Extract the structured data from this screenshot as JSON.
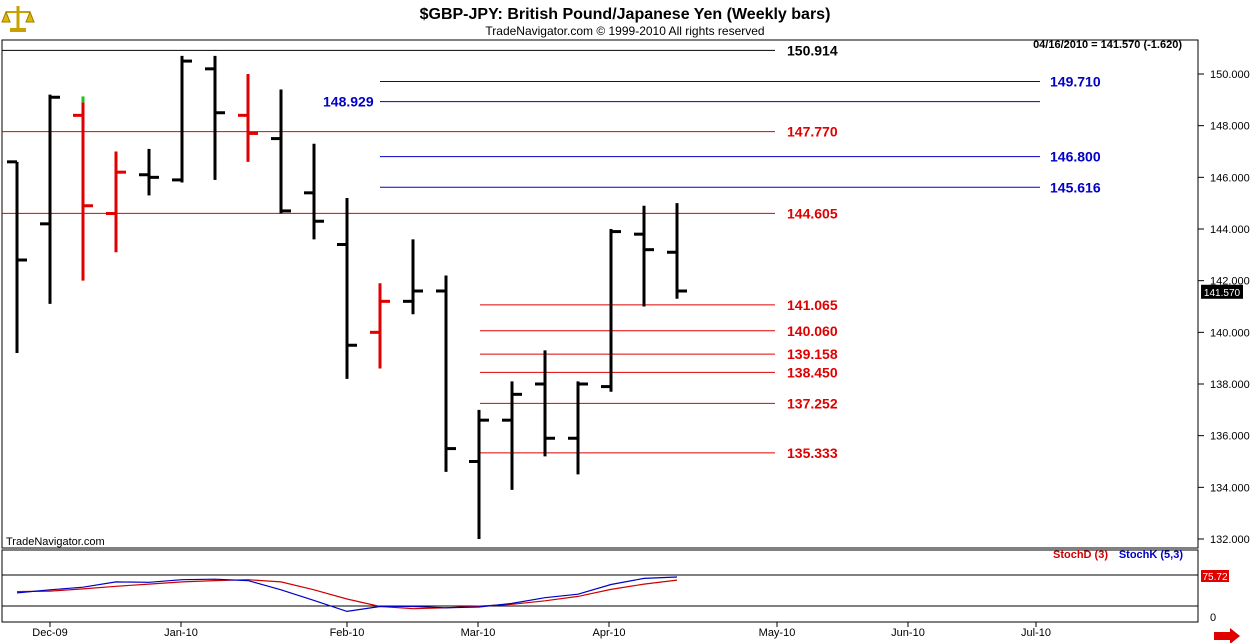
{
  "header": {
    "title": "$GBP-JPY:  British Pound/Japanese Yen  (Weekly bars)",
    "subtitle": "TradeNavigator.com © 1999-2010 All rights reserved",
    "last_quote": "04/16/2010 = 141.570 (-1.620)",
    "watermark": "TradeNavigator.com",
    "logo_icon": "scales-icon",
    "scroll_icon": "arrow-right-icon"
  },
  "colors": {
    "up_bar": "#000000",
    "down_bar": "#e00000",
    "red_level": "#e00000",
    "blue_level": "#0000c8",
    "stoch_d": "#d00000",
    "stoch_k": "#0000c8"
  },
  "chart_data": [
    {
      "type": "ohlc",
      "title": "$GBP-JPY:  British Pound/Japanese Yen  (Weekly bars)",
      "ylim": [
        131.5,
        151.4
      ],
      "y_ticks": [
        132,
        134,
        136,
        138,
        140,
        142,
        144,
        146,
        148,
        150
      ],
      "y_tick_labels": [
        "132.000",
        "134.000",
        "136.000",
        "138.000",
        "140.000",
        "142.000",
        "144.000",
        "146.000",
        "148.000",
        "150.000"
      ],
      "x_ticks": [
        "Dec-09",
        "Jan-10",
        "Feb-10",
        "Mar-10",
        "Apr-10",
        "May-10",
        "Jun-10",
        "Jul-10"
      ],
      "last_price_label": "141.570",
      "bars": [
        {
          "week": 1,
          "open": 146.6,
          "high": 146.6,
          "low": 139.2,
          "close": 142.8,
          "color": "black"
        },
        {
          "week": 2,
          "open": 144.2,
          "high": 149.2,
          "low": 141.1,
          "close": 149.1,
          "color": "black"
        },
        {
          "week": 3,
          "open": 148.4,
          "high": 148.9,
          "low": 142.0,
          "close": 144.9,
          "color": "red"
        },
        {
          "week": 4,
          "open": 144.6,
          "high": 147.0,
          "low": 143.1,
          "close": 146.2,
          "color": "red"
        },
        {
          "week": 5,
          "open": 146.1,
          "high": 147.1,
          "low": 145.3,
          "close": 146.0,
          "color": "black"
        },
        {
          "week": 6,
          "open": 145.9,
          "high": 150.7,
          "low": 145.8,
          "close": 150.5,
          "color": "black"
        },
        {
          "week": 7,
          "open": 150.2,
          "high": 150.7,
          "low": 145.9,
          "close": 148.5,
          "color": "black"
        },
        {
          "week": 8,
          "open": 148.4,
          "high": 150.0,
          "low": 146.6,
          "close": 147.7,
          "color": "red"
        },
        {
          "week": 9,
          "open": 147.5,
          "high": 149.4,
          "low": 144.6,
          "close": 144.7,
          "color": "black"
        },
        {
          "week": 10,
          "open": 145.4,
          "high": 147.3,
          "low": 143.6,
          "close": 144.3,
          "color": "black"
        },
        {
          "week": 11,
          "open": 143.4,
          "high": 145.2,
          "low": 138.2,
          "close": 139.5,
          "color": "black"
        },
        {
          "week": 12,
          "open": 140.0,
          "high": 141.9,
          "low": 138.6,
          "close": 141.2,
          "color": "red"
        },
        {
          "week": 13,
          "open": 141.2,
          "high": 143.6,
          "low": 140.7,
          "close": 141.6,
          "color": "black"
        },
        {
          "week": 14,
          "open": 141.6,
          "high": 142.2,
          "low": 134.6,
          "close": 135.5,
          "color": "black"
        },
        {
          "week": 15,
          "open": 135.0,
          "high": 137.0,
          "low": 132.0,
          "close": 136.6,
          "color": "black"
        },
        {
          "week": 16,
          "open": 136.6,
          "high": 138.1,
          "low": 133.9,
          "close": 137.6,
          "color": "black"
        },
        {
          "week": 17,
          "open": 138.0,
          "high": 139.3,
          "low": 135.2,
          "close": 135.9,
          "color": "black"
        },
        {
          "week": 18,
          "open": 135.9,
          "high": 138.1,
          "low": 134.5,
          "close": 138.0,
          "color": "black"
        },
        {
          "week": 19,
          "open": 137.9,
          "high": 144.0,
          "low": 137.7,
          "close": 143.9,
          "color": "black"
        },
        {
          "week": 20,
          "open": 143.8,
          "high": 144.9,
          "low": 141.0,
          "close": 143.2,
          "color": "black"
        },
        {
          "week": 21,
          "open": 143.1,
          "high": 145.0,
          "low": 141.3,
          "close": 141.6,
          "color": "black"
        }
      ],
      "levels": [
        {
          "value": 150.914,
          "label": "150.914",
          "color": "black"
        },
        {
          "value": 149.71,
          "label": "149.710",
          "color": "blue"
        },
        {
          "value": 148.929,
          "label": "148.929",
          "color": "blue"
        },
        {
          "value": 147.77,
          "label": "147.770",
          "color": "red"
        },
        {
          "value": 146.8,
          "label": "146.800",
          "color": "blue"
        },
        {
          "value": 145.616,
          "label": "145.616",
          "color": "blue"
        },
        {
          "value": 144.605,
          "label": "144.605",
          "color": "red"
        },
        {
          "value": 141.065,
          "label": "141.065",
          "color": "red"
        },
        {
          "value": 140.06,
          "label": "140.060",
          "color": "red"
        },
        {
          "value": 139.158,
          "label": "139.158",
          "color": "red"
        },
        {
          "value": 138.45,
          "label": "138.450",
          "color": "red"
        },
        {
          "value": 137.252,
          "label": "137.252",
          "color": "red"
        },
        {
          "value": 135.333,
          "label": "135.333",
          "color": "red"
        }
      ]
    },
    {
      "type": "line",
      "title": "",
      "legend": [
        "StochD (3)",
        "StochK (5,3)"
      ],
      "ylim": [
        0,
        100
      ],
      "y_tick_labels": [
        "0"
      ],
      "last_value_label": "75.72",
      "series": [
        {
          "name": "StochD (3)",
          "values": [
            51,
            52,
            57,
            63,
            68,
            73,
            76,
            78,
            73,
            55,
            34,
            17,
            12,
            14,
            18,
            22,
            30,
            40,
            56,
            68,
            77
          ]
        },
        {
          "name": "StochK (5,3)",
          "values": [
            48,
            55,
            61,
            73,
            72,
            78,
            79,
            76,
            55,
            31,
            6,
            17,
            17,
            14,
            16,
            24,
            37,
            45,
            67,
            81,
            84
          ]
        }
      ]
    }
  ]
}
